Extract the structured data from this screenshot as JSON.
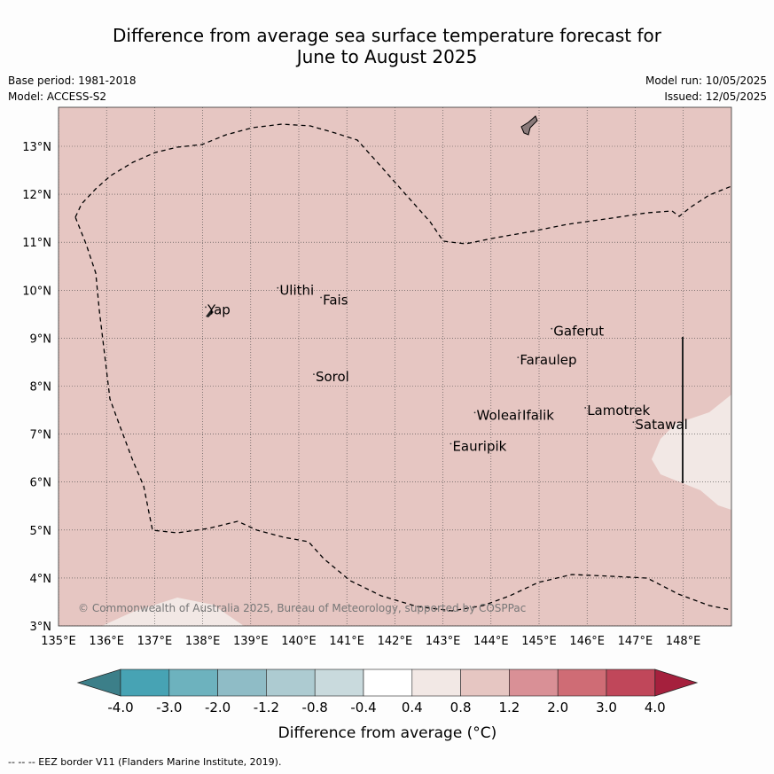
{
  "title_line1": "Difference from average sea surface temperature forecast for",
  "title_line2": "June to August 2025",
  "meta": {
    "base_period": "Base period: 1981-2018",
    "model": "Model: ACCESS-S2",
    "model_run": "Model run: 10/05/2025",
    "issued": "Issued: 12/05/2025"
  },
  "map": {
    "lon_range": [
      135,
      149
    ],
    "lat_range": [
      3,
      13.8
    ],
    "lon_ticks": [
      {
        "value": 135,
        "label": "135°E"
      },
      {
        "value": 136,
        "label": "136°E"
      },
      {
        "value": 137,
        "label": "137°E"
      },
      {
        "value": 138,
        "label": "138°E"
      },
      {
        "value": 139,
        "label": "139°E"
      },
      {
        "value": 140,
        "label": "140°E"
      },
      {
        "value": 141,
        "label": "141°E"
      },
      {
        "value": 142,
        "label": "142°E"
      },
      {
        "value": 143,
        "label": "143°E"
      },
      {
        "value": 144,
        "label": "144°E"
      },
      {
        "value": 145,
        "label": "145°E"
      },
      {
        "value": 146,
        "label": "146°E"
      },
      {
        "value": 147,
        "label": "147°E"
      },
      {
        "value": 148,
        "label": "148°E"
      }
    ],
    "lat_ticks": [
      {
        "value": 3,
        "label": "3°N"
      },
      {
        "value": 4,
        "label": "4°N"
      },
      {
        "value": 5,
        "label": "5°N"
      },
      {
        "value": 6,
        "label": "6°N"
      },
      {
        "value": 7,
        "label": "7°N"
      },
      {
        "value": 8,
        "label": "8°N"
      },
      {
        "value": 9,
        "label": "9°N"
      },
      {
        "value": 10,
        "label": "10°N"
      },
      {
        "value": 11,
        "label": "11°N"
      },
      {
        "value": 12,
        "label": "12°N"
      },
      {
        "value": 13,
        "label": "13°N"
      }
    ],
    "background_color": "#e6c6c2",
    "light_color": "#f2e8e5",
    "islands": [
      {
        "name": "Yap",
        "lon": 138.1,
        "lat": 9.5
      },
      {
        "name": "Ulithi",
        "lon": 139.6,
        "lat": 9.9
      },
      {
        "name": "Fais",
        "lon": 140.5,
        "lat": 9.7
      },
      {
        "name": "Sorol",
        "lon": 140.35,
        "lat": 8.1
      },
      {
        "name": "Gaferut",
        "lon": 145.3,
        "lat": 9.05
      },
      {
        "name": "Faraulep",
        "lon": 144.6,
        "lat": 8.45
      },
      {
        "name": "Woleai",
        "lon": 143.7,
        "lat": 7.3
      },
      {
        "name": "Ifalik",
        "lon": 144.65,
        "lat": 7.3
      },
      {
        "name": "Lamotrek",
        "lon": 146.0,
        "lat": 7.4
      },
      {
        "name": "Satawal",
        "lon": 147.0,
        "lat": 7.1
      },
      {
        "name": "Eauripik",
        "lon": 143.2,
        "lat": 6.65
      }
    ],
    "copyright": "© Commonwealth of Australia 2025, Bureau of Meteorology, supported by COSPPac"
  },
  "colorbar": {
    "colors": [
      "#3c7f89",
      "#47a3b4",
      "#6db2be",
      "#8fbcc6",
      "#adcbd1",
      "#c9dadd",
      "#ffffff",
      "#f2e8e5",
      "#e6c6c2",
      "#d99096",
      "#cf6c75",
      "#c0475a",
      "#a5203d"
    ],
    "labels": [
      "-4.0",
      "-3.0",
      "-2.0",
      "-1.2",
      "-0.8",
      "-0.4",
      "0.4",
      "0.8",
      "1.2",
      "2.0",
      "3.0",
      "4.0"
    ],
    "title": "Difference from average (°C)"
  },
  "footer": "--  --  -- EEZ border V11 (Flanders Marine Institute, 2019)."
}
